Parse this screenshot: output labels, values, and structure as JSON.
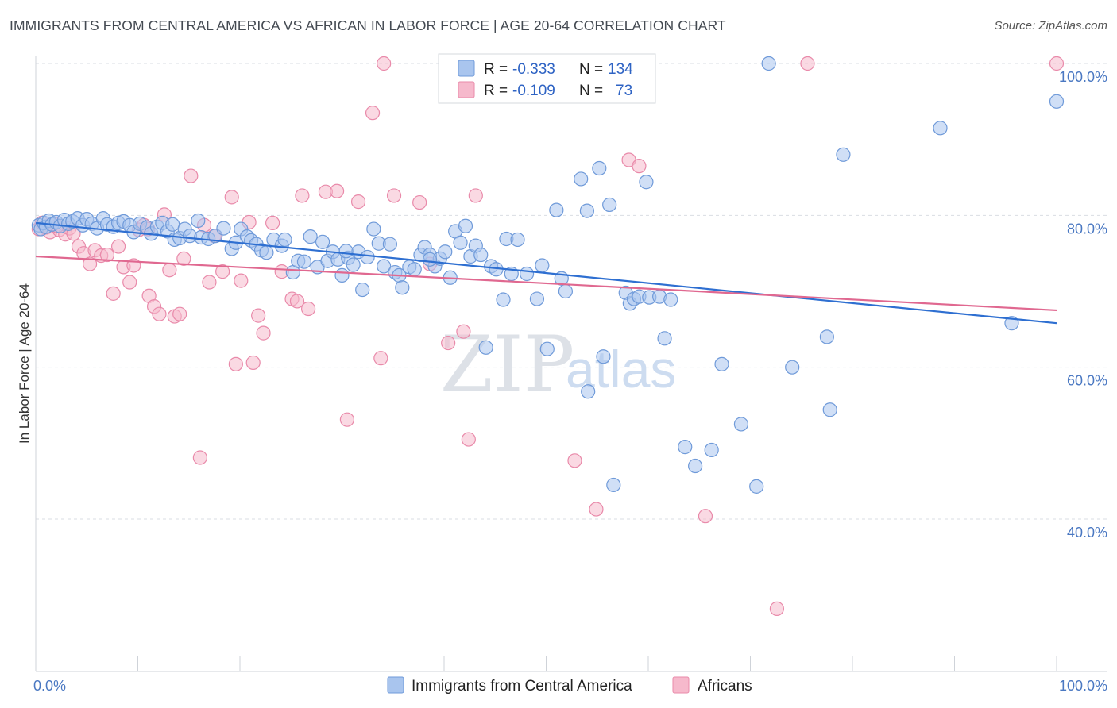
{
  "title": "IMMIGRANTS FROM CENTRAL AMERICA VS AFRICAN IN LABOR FORCE | AGE 20-64 CORRELATION CHART",
  "source": "Source: ZipAtlas.com",
  "watermark": {
    "zip": "ZIP",
    "atlas": "atlas"
  },
  "legend_top": {
    "rows": [
      {
        "r_label": "R =",
        "r_value": "-0.333",
        "n_label": "N =",
        "n_value": "134"
      },
      {
        "r_label": "R =",
        "r_value": "-0.109",
        "n_label": "N =",
        "n_value": "73"
      }
    ]
  },
  "colors": {
    "blue_fill": "#a9c5ee",
    "blue_stroke": "#6f9ad9",
    "blue_line": "#2e6fd1",
    "pink_fill": "#f6b9cc",
    "pink_stroke": "#e98aaa",
    "pink_line": "#e06890",
    "grid": "#d9dde3",
    "tick_text": "#4a78c2"
  },
  "chart_data": {
    "type": "scatter",
    "title": "IMMIGRANTS FROM CENTRAL AMERICA VS AFRICAN IN LABOR FORCE | AGE 20-64 CORRELATION CHART",
    "xlabel": "",
    "ylabel": "In Labor Force | Age 20-64",
    "xlim": [
      0,
      100
    ],
    "ylim": [
      20,
      102
    ],
    "x_tick_labels": [
      "0.0%",
      "100.0%"
    ],
    "y_ticks": [
      40,
      60,
      80,
      100
    ],
    "y_tick_labels": [
      "40.0%",
      "60.0%",
      "80.0%",
      "100.0%"
    ],
    "grid": true,
    "legend_position": "bottom",
    "series": [
      {
        "name": "Immigrants from Central America",
        "color": "#a9c5ee",
        "trend": {
          "x": [
            0,
            100
          ],
          "y": [
            79.0,
            65.8
          ]
        },
        "points": [
          [
            0.3,
            78.7
          ],
          [
            0.5,
            78.2
          ],
          [
            0.8,
            79.0
          ],
          [
            1.0,
            78.5
          ],
          [
            1.3,
            79.3
          ],
          [
            1.6,
            78.8
          ],
          [
            2.0,
            79.1
          ],
          [
            2.4,
            78.6
          ],
          [
            2.8,
            79.4
          ],
          [
            3.2,
            78.9
          ],
          [
            3.6,
            79.2
          ],
          [
            4.1,
            79.6
          ],
          [
            4.6,
            78.7
          ],
          [
            5.0,
            79.5
          ],
          [
            5.5,
            78.9
          ],
          [
            6.0,
            78.3
          ],
          [
            6.6,
            79.6
          ],
          [
            7.0,
            78.8
          ],
          [
            7.6,
            78.5
          ],
          [
            8.1,
            79.0
          ],
          [
            8.6,
            79.2
          ],
          [
            9.2,
            78.7
          ],
          [
            9.6,
            77.8
          ],
          [
            10.2,
            78.9
          ],
          [
            10.9,
            78.4
          ],
          [
            11.3,
            77.6
          ],
          [
            11.9,
            78.5
          ],
          [
            12.4,
            79.0
          ],
          [
            12.9,
            77.9
          ],
          [
            13.4,
            78.8
          ],
          [
            13.6,
            76.8
          ],
          [
            14.1,
            77.0
          ],
          [
            14.6,
            78.2
          ],
          [
            15.1,
            77.3
          ],
          [
            15.9,
            79.3
          ],
          [
            16.2,
            77.1
          ],
          [
            16.9,
            76.9
          ],
          [
            17.6,
            77.3
          ],
          [
            18.4,
            78.3
          ],
          [
            19.2,
            75.6
          ],
          [
            19.6,
            76.4
          ],
          [
            20.1,
            78.2
          ],
          [
            20.7,
            77.2
          ],
          [
            21.1,
            76.7
          ],
          [
            21.6,
            76.2
          ],
          [
            22.1,
            75.4
          ],
          [
            22.6,
            75.1
          ],
          [
            23.3,
            76.8
          ],
          [
            24.1,
            76.0
          ],
          [
            24.4,
            76.8
          ],
          [
            25.2,
            72.5
          ],
          [
            25.7,
            74.0
          ],
          [
            26.3,
            73.9
          ],
          [
            26.9,
            77.2
          ],
          [
            27.6,
            73.2
          ],
          [
            28.1,
            76.5
          ],
          [
            28.6,
            74.0
          ],
          [
            29.1,
            75.2
          ],
          [
            29.6,
            74.2
          ],
          [
            30.0,
            72.1
          ],
          [
            30.6,
            74.4
          ],
          [
            31.1,
            73.5
          ],
          [
            31.6,
            75.2
          ],
          [
            32.0,
            70.2
          ],
          [
            32.5,
            74.5
          ],
          [
            33.1,
            78.2
          ],
          [
            33.6,
            76.3
          ],
          [
            34.1,
            73.3
          ],
          [
            34.7,
            76.2
          ],
          [
            35.2,
            72.5
          ],
          [
            35.6,
            72.1
          ],
          [
            35.9,
            70.5
          ],
          [
            36.6,
            73.2
          ],
          [
            37.1,
            72.9
          ],
          [
            37.7,
            74.8
          ],
          [
            38.1,
            75.8
          ],
          [
            38.6,
            74.8
          ],
          [
            39.1,
            73.3
          ],
          [
            39.6,
            74.3
          ],
          [
            40.1,
            75.2
          ],
          [
            40.6,
            71.8
          ],
          [
            41.1,
            77.9
          ],
          [
            41.6,
            76.4
          ],
          [
            42.1,
            78.6
          ],
          [
            42.6,
            74.6
          ],
          [
            43.1,
            76.0
          ],
          [
            43.6,
            74.8
          ],
          [
            44.1,
            62.6
          ],
          [
            44.6,
            73.3
          ],
          [
            45.1,
            72.9
          ],
          [
            45.8,
            68.9
          ],
          [
            46.1,
            76.9
          ],
          [
            46.6,
            72.3
          ],
          [
            47.2,
            76.8
          ],
          [
            48.1,
            72.3
          ],
          [
            49.1,
            69.0
          ],
          [
            49.6,
            73.4
          ],
          [
            50.1,
            62.4
          ],
          [
            51.0,
            80.7
          ],
          [
            51.5,
            71.7
          ],
          [
            51.9,
            70.0
          ],
          [
            53.4,
            84.8
          ],
          [
            54.0,
            80.6
          ],
          [
            54.1,
            56.8
          ],
          [
            55.2,
            86.2
          ],
          [
            55.6,
            61.4
          ],
          [
            56.2,
            81.4
          ],
          [
            56.6,
            44.5
          ],
          [
            57.8,
            69.8
          ],
          [
            58.2,
            68.4
          ],
          [
            58.6,
            69.0
          ],
          [
            59.1,
            69.3
          ],
          [
            59.8,
            84.4
          ],
          [
            60.1,
            69.2
          ],
          [
            61.1,
            69.3
          ],
          [
            61.6,
            63.8
          ],
          [
            62.2,
            68.9
          ],
          [
            63.6,
            49.5
          ],
          [
            64.6,
            47.0
          ],
          [
            66.2,
            49.1
          ],
          [
            67.2,
            60.4
          ],
          [
            69.1,
            52.5
          ],
          [
            70.6,
            44.3
          ],
          [
            71.8,
            100.0
          ],
          [
            74.1,
            60.0
          ],
          [
            77.5,
            64.0
          ],
          [
            77.8,
            54.4
          ],
          [
            79.1,
            88.0
          ],
          [
            88.6,
            91.5
          ],
          [
            95.6,
            65.8
          ],
          [
            100.0,
            95.0
          ],
          [
            49.4,
            100.0
          ],
          [
            38.6,
            74.2
          ],
          [
            30.4,
            75.3
          ]
        ]
      },
      {
        "name": "Africans",
        "color": "#f6b9cc",
        "trend": {
          "x": [
            0,
            100
          ],
          "y": [
            74.6,
            67.5
          ]
        },
        "points": [
          [
            0.3,
            78.2
          ],
          [
            0.6,
            79.0
          ],
          [
            1.0,
            78.4
          ],
          [
            1.4,
            77.8
          ],
          [
            1.8,
            78.9
          ],
          [
            2.3,
            78.1
          ],
          [
            2.9,
            77.5
          ],
          [
            3.3,
            78.3
          ],
          [
            3.7,
            77.6
          ],
          [
            4.2,
            75.9
          ],
          [
            4.7,
            75.0
          ],
          [
            5.3,
            73.6
          ],
          [
            5.8,
            75.4
          ],
          [
            6.4,
            74.7
          ],
          [
            7.0,
            74.8
          ],
          [
            7.6,
            69.7
          ],
          [
            8.1,
            75.9
          ],
          [
            8.6,
            73.2
          ],
          [
            9.2,
            71.2
          ],
          [
            9.6,
            73.4
          ],
          [
            10.1,
            78.1
          ],
          [
            10.6,
            78.7
          ],
          [
            11.1,
            69.4
          ],
          [
            11.6,
            68.0
          ],
          [
            12.1,
            67.0
          ],
          [
            12.6,
            80.1
          ],
          [
            13.1,
            72.8
          ],
          [
            13.6,
            66.7
          ],
          [
            14.1,
            67.0
          ],
          [
            14.5,
            74.3
          ],
          [
            15.2,
            85.2
          ],
          [
            16.1,
            48.1
          ],
          [
            16.5,
            78.7
          ],
          [
            17.0,
            71.2
          ],
          [
            17.5,
            77.3
          ],
          [
            18.3,
            72.6
          ],
          [
            19.2,
            82.4
          ],
          [
            19.6,
            60.4
          ],
          [
            20.1,
            71.4
          ],
          [
            20.9,
            79.1
          ],
          [
            21.3,
            60.6
          ],
          [
            21.8,
            66.8
          ],
          [
            22.3,
            64.5
          ],
          [
            23.2,
            79.0
          ],
          [
            24.1,
            72.6
          ],
          [
            25.1,
            69.0
          ],
          [
            25.6,
            68.7
          ],
          [
            26.1,
            82.6
          ],
          [
            26.7,
            67.7
          ],
          [
            28.4,
            83.1
          ],
          [
            29.5,
            83.2
          ],
          [
            30.5,
            53.1
          ],
          [
            31.6,
            81.8
          ],
          [
            33.0,
            93.5
          ],
          [
            33.8,
            61.2
          ],
          [
            34.1,
            100.0
          ],
          [
            35.1,
            82.6
          ],
          [
            37.6,
            81.7
          ],
          [
            38.6,
            73.6
          ],
          [
            40.4,
            63.2
          ],
          [
            41.9,
            64.7
          ],
          [
            42.4,
            50.5
          ],
          [
            43.1,
            82.6
          ],
          [
            52.8,
            47.7
          ],
          [
            54.9,
            41.3
          ],
          [
            58.1,
            87.3
          ],
          [
            59.1,
            86.5
          ],
          [
            65.6,
            40.4
          ],
          [
            72.6,
            28.2
          ],
          [
            75.6,
            100.0
          ],
          [
            100.0,
            100.0
          ],
          [
            2.1,
            78.6
          ],
          [
            11.0,
            78.2
          ]
        ]
      }
    ]
  }
}
